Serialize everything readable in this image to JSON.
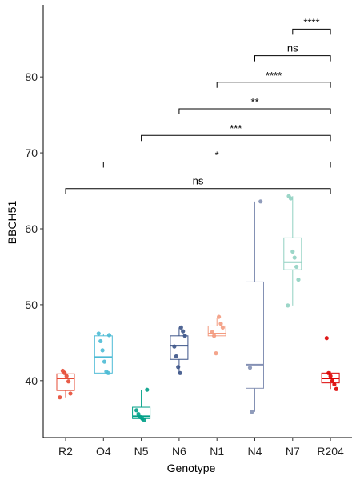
{
  "chart_data": {
    "type": "box",
    "xlabel": "Genotype",
    "ylabel": "BBCH51",
    "ylim": [
      32.5,
      89.5
    ],
    "yticks": [
      40,
      50,
      60,
      70,
      80
    ],
    "categories": [
      "R2",
      "O4",
      "N5",
      "N6",
      "N1",
      "N4",
      "N7",
      "R204"
    ],
    "boxes": [
      {
        "category": "R2",
        "color": "#E64B35",
        "q1": 38.7,
        "median": 40.3,
        "q3": 40.9,
        "wlo": 37.8,
        "whi": 41.3,
        "points": [
          37.8,
          38.3,
          39.9,
          40.6,
          41.0,
          41.3
        ]
      },
      {
        "category": "O4",
        "color": "#4DBBD5",
        "q1": 41.0,
        "median": 43.1,
        "q3": 45.9,
        "wlo": 41.0,
        "whi": 46.2,
        "points": [
          41.0,
          41.2,
          42.5,
          44.0,
          45.2,
          46.2,
          46.0
        ]
      },
      {
        "category": "N5",
        "color": "#00A087",
        "q1": 35.0,
        "median": 35.3,
        "q3": 36.5,
        "wlo": 34.8,
        "whi": 38.8,
        "points": [
          34.8,
          35.0,
          35.2,
          35.6,
          36.1,
          38.8
        ]
      },
      {
        "category": "N6",
        "color": "#3C5488",
        "q1": 42.8,
        "median": 44.6,
        "q3": 45.9,
        "wlo": 41.0,
        "whi": 47.0,
        "points": [
          41.0,
          41.8,
          43.2,
          44.5,
          45.9,
          46.5,
          47.0
        ]
      },
      {
        "category": "N1",
        "color": "#F39B7F",
        "q1": 45.9,
        "median": 46.2,
        "q3": 47.2,
        "wlo": 45.9,
        "whi": 48.2,
        "points": [
          43.6,
          45.9,
          46.4,
          47.0,
          47.5,
          48.4
        ]
      },
      {
        "category": "N4",
        "color": "#8491B4",
        "q1": 39.0,
        "median": 42.1,
        "q3": 53.0,
        "wlo": 35.9,
        "whi": 63.6,
        "points": [
          35.9,
          41.7,
          63.6
        ]
      },
      {
        "category": "N7",
        "color": "#91D1C2",
        "q1": 54.6,
        "median": 55.6,
        "q3": 58.8,
        "wlo": 49.9,
        "whi": 64.3,
        "points": [
          49.9,
          53.3,
          55.0,
          56.2,
          57.0,
          64.0,
          64.3
        ]
      },
      {
        "category": "R204",
        "color": "#DC0000",
        "q1": 39.7,
        "median": 40.3,
        "q3": 41.0,
        "wlo": 38.9,
        "whi": 41.2,
        "points": [
          38.9,
          39.5,
          40.0,
          40.6,
          41.0,
          45.6
        ]
      }
    ],
    "significance": [
      {
        "from": "R2",
        "to": "R204",
        "label": "ns",
        "y": 65.3
      },
      {
        "from": "O4",
        "to": "R204",
        "label": "*",
        "y": 68.8
      },
      {
        "from": "N5",
        "to": "R204",
        "label": "***",
        "y": 72.3
      },
      {
        "from": "N6",
        "to": "R204",
        "label": "**",
        "y": 75.8
      },
      {
        "from": "N1",
        "to": "R204",
        "label": "****",
        "y": 79.3
      },
      {
        "from": "N4",
        "to": "R204",
        "label": "ns",
        "y": 82.8
      },
      {
        "from": "N7",
        "to": "R204",
        "label": "****",
        "y": 86.3
      }
    ],
    "grid": false,
    "legend": "none"
  }
}
